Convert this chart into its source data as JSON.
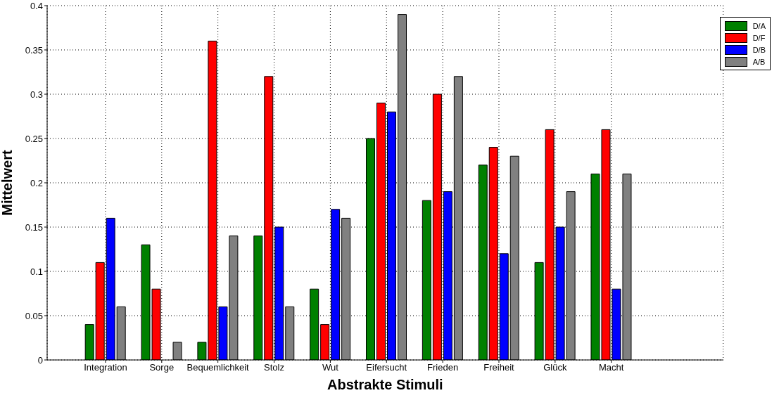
{
  "chart_data": {
    "type": "bar",
    "xlabel": "Abstrakte Stimuli",
    "ylabel": "Mittelwert",
    "categories": [
      "Integration",
      "Sorge",
      "Bequemlichkeit",
      "Stolz",
      "Wut",
      "Eifersucht",
      "Frieden",
      "Freiheit",
      "Glück",
      "Macht"
    ],
    "series": [
      {
        "name": "D/A",
        "color": "#008000",
        "values": [
          0.04,
          0.13,
          0.02,
          0.14,
          0.08,
          0.25,
          0.18,
          0.22,
          0.11,
          0.21
        ]
      },
      {
        "name": "D/F",
        "color": "#ff0000",
        "values": [
          0.11,
          0.08,
          0.36,
          0.32,
          0.04,
          0.29,
          0.3,
          0.24,
          0.26,
          0.26
        ]
      },
      {
        "name": "D/B",
        "color": "#0000ff",
        "values": [
          0.16,
          null,
          0.06,
          0.15,
          0.17,
          0.28,
          0.19,
          0.12,
          0.15,
          0.08
        ]
      },
      {
        "name": "A/B",
        "color": "#808080",
        "values": [
          0.06,
          0.02,
          0.14,
          0.06,
          0.16,
          0.39,
          0.32,
          0.23,
          0.19,
          0.21
        ]
      }
    ],
    "ylim": [
      0,
      0.4
    ],
    "yticks": [
      0,
      0.05,
      0.1,
      0.15,
      0.2,
      0.25,
      0.3,
      0.35,
      0.4
    ],
    "grid": true,
    "legend": "top right"
  }
}
